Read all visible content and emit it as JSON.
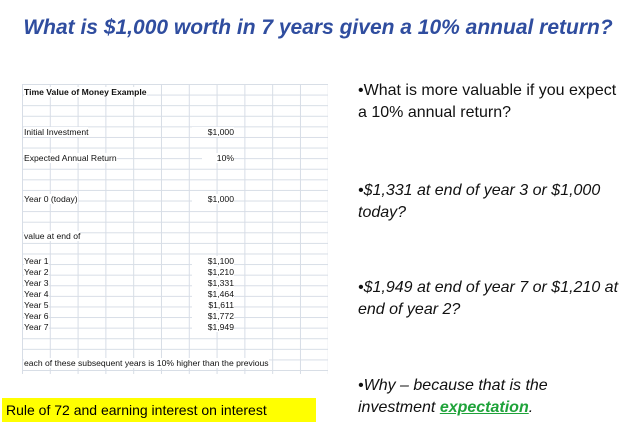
{
  "title": "What is $1,000 worth in 7 years given a 10% annual return?",
  "sheet": {
    "heading": "Time Value of Money Example",
    "initial_label": "Initial Investment",
    "initial_value": "$1,000",
    "return_label": "Expected Annual Return",
    "return_value": "10%",
    "year0_label": "Year 0 (today)",
    "year0_value": "$1,000",
    "value_label": "value at end of",
    "years": [
      {
        "label": "Year 1",
        "value": "$1,100"
      },
      {
        "label": "Year 2",
        "value": "$1,210"
      },
      {
        "label": "Year 3",
        "value": "$1,331"
      },
      {
        "label": "Year 4",
        "value": "$1,464"
      },
      {
        "label": "Year 5",
        "value": "$1,611"
      },
      {
        "label": "Year 6",
        "value": "$1,772"
      },
      {
        "label": "Year 7",
        "value": "$1,949"
      }
    ],
    "footnote": "each of these subsequent years is 10% higher than the previous"
  },
  "bullets": {
    "b1": "•What is more valuable if you expect a 10% annual return?",
    "b2": "•$1,331 at end of year 3 or $1,000 today?",
    "b3": "•$1,949 at end of year 7 or $1,210 at end of year 2?",
    "b4_prefix": "•Why – because that is the investment ",
    "b4_emphasis": "expectation",
    "b4_suffix": "."
  },
  "highlight_text": "Rule of 72 and earning interest on interest",
  "colors": {
    "title": "#2f4d9f",
    "emphasis": "#1fa33a",
    "highlight": "#ffff00"
  }
}
